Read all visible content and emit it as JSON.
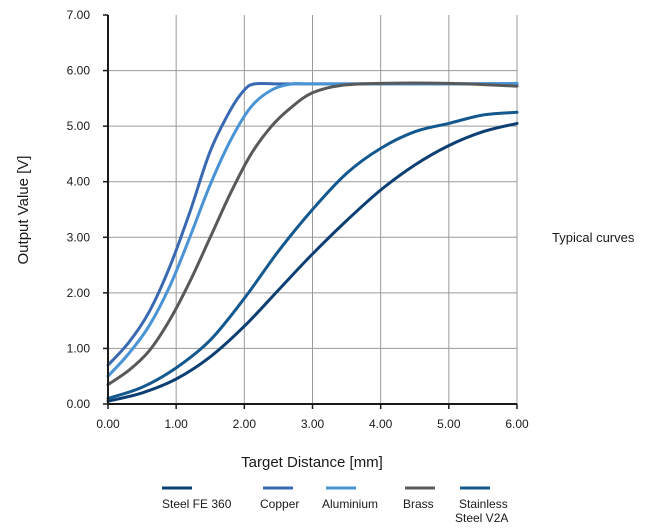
{
  "chart_data": {
    "type": "line",
    "xlabel": "Target Distance  [mm]",
    "ylabel": "Output Value  [V]",
    "xlim": [
      0,
      6
    ],
    "ylim": [
      0,
      7
    ],
    "x_ticks": [
      "0.00",
      "1.00",
      "2.00",
      "3.00",
      "4.00",
      "5.00",
      "6.00"
    ],
    "y_ticks": [
      "0.00",
      "1.00",
      "2.00",
      "3.00",
      "4.00",
      "5.00",
      "6.00",
      "7.00"
    ],
    "grid": true,
    "legend_position": "bottom",
    "series": [
      {
        "name": "Steel FE 360",
        "color": "#0d3f74",
        "points": [
          [
            0,
            0.05
          ],
          [
            0.5,
            0.2
          ],
          [
            1,
            0.45
          ],
          [
            1.5,
            0.85
          ],
          [
            2,
            1.4
          ],
          [
            2.5,
            2.05
          ],
          [
            3,
            2.7
          ],
          [
            3.5,
            3.3
          ],
          [
            4,
            3.85
          ],
          [
            4.5,
            4.3
          ],
          [
            5,
            4.65
          ],
          [
            5.5,
            4.9
          ],
          [
            6,
            5.05
          ]
        ]
      },
      {
        "name": "Copper",
        "color": "#3a69b3",
        "points": [
          [
            0,
            0.7
          ],
          [
            0.3,
            1.1
          ],
          [
            0.6,
            1.65
          ],
          [
            0.9,
            2.45
          ],
          [
            1.2,
            3.45
          ],
          [
            1.5,
            4.55
          ],
          [
            1.8,
            5.3
          ],
          [
            2.0,
            5.65
          ],
          [
            2.15,
            5.76
          ],
          [
            2.5,
            5.76
          ],
          [
            3,
            5.76
          ],
          [
            4,
            5.76
          ],
          [
            5,
            5.76
          ],
          [
            6,
            5.76
          ]
        ]
      },
      {
        "name": "Aluminium",
        "color": "#4a94d6",
        "points": [
          [
            0,
            0.5
          ],
          [
            0.3,
            0.9
          ],
          [
            0.6,
            1.4
          ],
          [
            0.9,
            2.1
          ],
          [
            1.2,
            3.0
          ],
          [
            1.5,
            3.95
          ],
          [
            1.8,
            4.75
          ],
          [
            2.1,
            5.35
          ],
          [
            2.4,
            5.65
          ],
          [
            2.7,
            5.76
          ],
          [
            3,
            5.76
          ],
          [
            4,
            5.76
          ],
          [
            5,
            5.76
          ],
          [
            6,
            5.77
          ]
        ]
      },
      {
        "name": "Brass",
        "color": "#58595b",
        "points": [
          [
            0,
            0.35
          ],
          [
            0.3,
            0.6
          ],
          [
            0.6,
            0.95
          ],
          [
            0.9,
            1.5
          ],
          [
            1.2,
            2.2
          ],
          [
            1.5,
            3.0
          ],
          [
            1.8,
            3.8
          ],
          [
            2.1,
            4.5
          ],
          [
            2.4,
            5.0
          ],
          [
            2.7,
            5.35
          ],
          [
            3.0,
            5.6
          ],
          [
            3.4,
            5.73
          ],
          [
            4,
            5.77
          ],
          [
            5,
            5.77
          ],
          [
            6,
            5.72
          ]
        ]
      },
      {
        "name": "Stainless Steel V2A",
        "color": "#13588f",
        "points": [
          [
            0,
            0.1
          ],
          [
            0.5,
            0.3
          ],
          [
            1,
            0.65
          ],
          [
            1.5,
            1.15
          ],
          [
            2,
            1.9
          ],
          [
            2.5,
            2.75
          ],
          [
            3,
            3.5
          ],
          [
            3.5,
            4.15
          ],
          [
            4,
            4.6
          ],
          [
            4.5,
            4.9
          ],
          [
            5,
            5.05
          ],
          [
            5.5,
            5.2
          ],
          [
            6,
            5.25
          ]
        ]
      }
    ]
  },
  "legend_labels": [
    "Steel FE 360",
    "Copper",
    "Aluminium",
    "Brass"
  ],
  "legend_label_stainless_1": "Stainless",
  "legend_label_stainless_2": "Steel V2A",
  "note": "Typical curves"
}
